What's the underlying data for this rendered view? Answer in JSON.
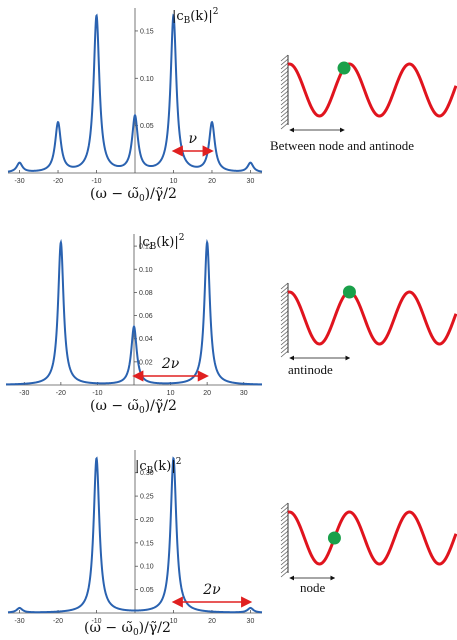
{
  "colors": {
    "curve": "#2a62b0",
    "arrow": "#e02020",
    "wave": "#e0141e",
    "atom": "#1aa04a",
    "wall": "#555555"
  },
  "icons": [
    "hatched-wall-icon",
    "atom-dot-icon"
  ],
  "chart_data": [
    {
      "type": "line",
      "title": "",
      "xlabel": "(ω − ω̃₀)/γ̃/2",
      "ylabel": "|c_B(k)|²",
      "ylabel_parts": {
        "main": "|c",
        "sub": "B",
        "mid": "(k)|",
        "sup": "2"
      },
      "xlabel_parts": {
        "pre": "(ω − ",
        "w0": "ω̃",
        "w0sub": "0",
        "mid": ")/",
        "g": "γ̃",
        "post": "/2"
      },
      "xlim": [
        -33,
        33
      ],
      "ylim": [
        0,
        0.17
      ],
      "xticks": [
        -30,
        -20,
        -10,
        10,
        20,
        30
      ],
      "xtick_labels": [
        "-30",
        "-20",
        "-10",
        "10",
        "20",
        "30"
      ],
      "yticks": [
        0.05,
        0.1,
        0.15
      ],
      "ytick_labels": [
        "0.05",
        "0.10",
        "0.15"
      ],
      "peaks": [
        {
          "x": -30,
          "y": 0.01
        },
        {
          "x": -20,
          "y": 0.052
        },
        {
          "x": -10,
          "y": 0.165
        },
        {
          "x": 0,
          "y": 0.058
        },
        {
          "x": 10,
          "y": 0.165
        },
        {
          "x": 20,
          "y": 0.052
        },
        {
          "x": 30,
          "y": 0.01
        }
      ],
      "annotation": {
        "label": "ν",
        "from": 10,
        "to": 20
      },
      "caption": "Between node and antinode",
      "atom_phase": 0.32
    },
    {
      "type": "line",
      "title": "",
      "xlabel": "(ω − ω̃₀)/γ̃/2",
      "ylabel": "|c_B(k)|²",
      "ylabel_parts": {
        "main": "|c",
        "sub": "B",
        "mid": "(k)|",
        "sup": "2"
      },
      "xlabel_parts": {
        "pre": "(ω − ",
        "w0": "ω̃",
        "w0sub": "0",
        "mid": ")/",
        "g": "γ̃",
        "post": "/2"
      },
      "xlim": [
        -35,
        35
      ],
      "ylim": [
        0,
        0.127
      ],
      "xticks": [
        -30,
        -20,
        -10,
        10,
        20,
        30
      ],
      "xtick_labels": [
        "-30",
        "-20",
        "-10",
        "10",
        "20",
        "30"
      ],
      "yticks": [
        0.02,
        0.04,
        0.06,
        0.08,
        0.1,
        0.12
      ],
      "ytick_labels": [
        "0.02",
        "0.04",
        "0.06",
        "0.08",
        "0.10",
        "0.12"
      ],
      "peaks": [
        {
          "x": -20,
          "y": 0.123
        },
        {
          "x": 0,
          "y": 0.05
        },
        {
          "x": 20,
          "y": 0.123
        }
      ],
      "annotation": {
        "label": "2ν",
        "from": 0,
        "to": 20
      },
      "caption": "antinode",
      "atom_phase": 0.5
    },
    {
      "type": "line",
      "title": "",
      "xlabel": "(ω − ω̃₀)/γ̃/2",
      "ylabel": "|c_B(k)|²",
      "ylabel_parts": {
        "main": "|c",
        "sub": "B",
        "mid": "(k)|",
        "sup": "2"
      },
      "xlabel_parts": {
        "pre": "(ω − ",
        "w0": "ω̃",
        "w0sub": "0",
        "mid": ")/",
        "g": "γ̃",
        "post": "/2"
      },
      "xlim": [
        -33,
        33
      ],
      "ylim": [
        0,
        0.34
      ],
      "xticks": [
        -30,
        -20,
        -10,
        10,
        20,
        30
      ],
      "xtick_labels": [
        "-30",
        "-20",
        "-10",
        "10",
        "20",
        "30"
      ],
      "yticks": [
        0.05,
        0.1,
        0.15,
        0.2,
        0.25,
        0.3
      ],
      "ytick_labels": [
        "0.05",
        "0.10",
        "0.15",
        "0.20",
        "0.25",
        "0.30"
      ],
      "peaks": [
        {
          "x": -30,
          "y": 0.01
        },
        {
          "x": -10,
          "y": 0.33
        },
        {
          "x": 10,
          "y": 0.33
        },
        {
          "x": 30,
          "y": 0.01
        }
      ],
      "annotation": {
        "label": "2ν",
        "from": 10,
        "to": 30
      },
      "caption": "node",
      "atom_phase": 0.0
    }
  ]
}
